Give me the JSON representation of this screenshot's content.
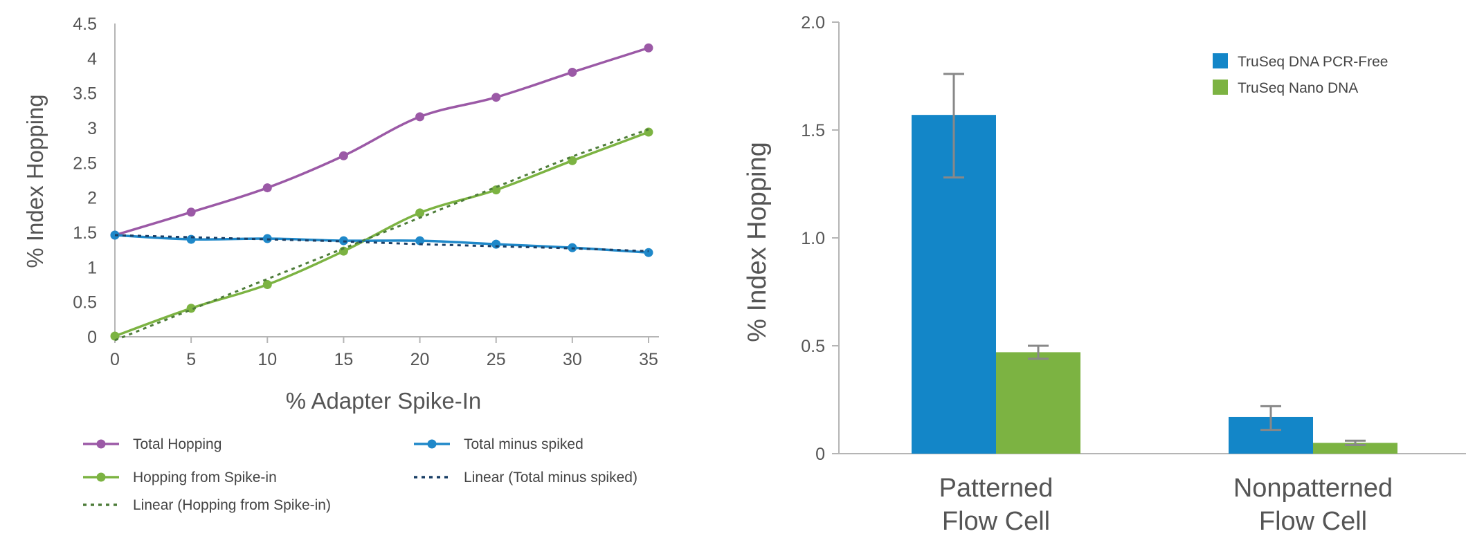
{
  "chart_data": [
    {
      "type": "line",
      "xlabel": "% Adapter Spike-In",
      "ylabel": "% Index Hopping",
      "xlim": [
        0,
        35
      ],
      "ylim": [
        0,
        4.5
      ],
      "x_ticks": [
        "0",
        "5",
        "10",
        "15",
        "20",
        "25",
        "30",
        "35"
      ],
      "y_ticks": [
        "0",
        "0.5",
        "1",
        "1.5",
        "2",
        "2.5",
        "3",
        "3.5",
        "4",
        "4.5"
      ],
      "x": [
        0,
        5,
        10,
        15,
        20,
        25,
        30,
        35
      ],
      "grid": false,
      "legend_position": "bottom",
      "series": [
        {
          "name": "Total Hopping",
          "values": [
            1.46,
            1.79,
            2.14,
            2.6,
            3.16,
            3.44,
            3.8,
            4.15
          ],
          "color": "#9b59a6",
          "style": "solid",
          "markers": true
        },
        {
          "name": "Total minus spiked",
          "values": [
            1.46,
            1.4,
            1.41,
            1.38,
            1.38,
            1.33,
            1.28,
            1.21
          ],
          "color": "#1f88c9",
          "style": "solid",
          "markers": true
        },
        {
          "name": "Hopping from Spike-in",
          "values": [
            0.01,
            0.41,
            0.75,
            1.23,
            1.78,
            2.11,
            2.53,
            2.94
          ],
          "color": "#7cb342",
          "style": "solid",
          "markers": true
        },
        {
          "name": "Linear (Total minus spiked)",
          "values": [
            1.46,
            1.43,
            1.4,
            1.37,
            1.33,
            1.3,
            1.27,
            1.23
          ],
          "color": "#1a3f66",
          "style": "dotted",
          "markers": false
        },
        {
          "name": "Linear (Hopping from Spike-in)",
          "values": [
            -0.05,
            0.39,
            0.83,
            1.27,
            1.71,
            2.15,
            2.59,
            2.98
          ],
          "color": "#4e7d3a",
          "style": "dotted",
          "markers": false
        }
      ]
    },
    {
      "type": "bar",
      "ylabel": "% Index Hopping",
      "categories": [
        "Patterned\nFlow Cell",
        "Nonpatterned\nFlow Cell"
      ],
      "ylim": [
        0,
        2.0
      ],
      "y_ticks": [
        "0",
        "0.5",
        "1.0",
        "1.5",
        "2.0"
      ],
      "grid": false,
      "legend_position": "top-right",
      "series": [
        {
          "name": "TruSeq DNA PCR-Free",
          "values": [
            1.57,
            0.17
          ],
          "error_low": [
            1.28,
            0.11
          ],
          "error_high": [
            1.76,
            0.22
          ],
          "color": "#1386c8"
        },
        {
          "name": "TruSeq Nano DNA",
          "values": [
            0.47,
            0.05
          ],
          "error_low": [
            0.44,
            0.04
          ],
          "error_high": [
            0.5,
            0.06
          ],
          "color": "#7cb342"
        }
      ]
    }
  ]
}
